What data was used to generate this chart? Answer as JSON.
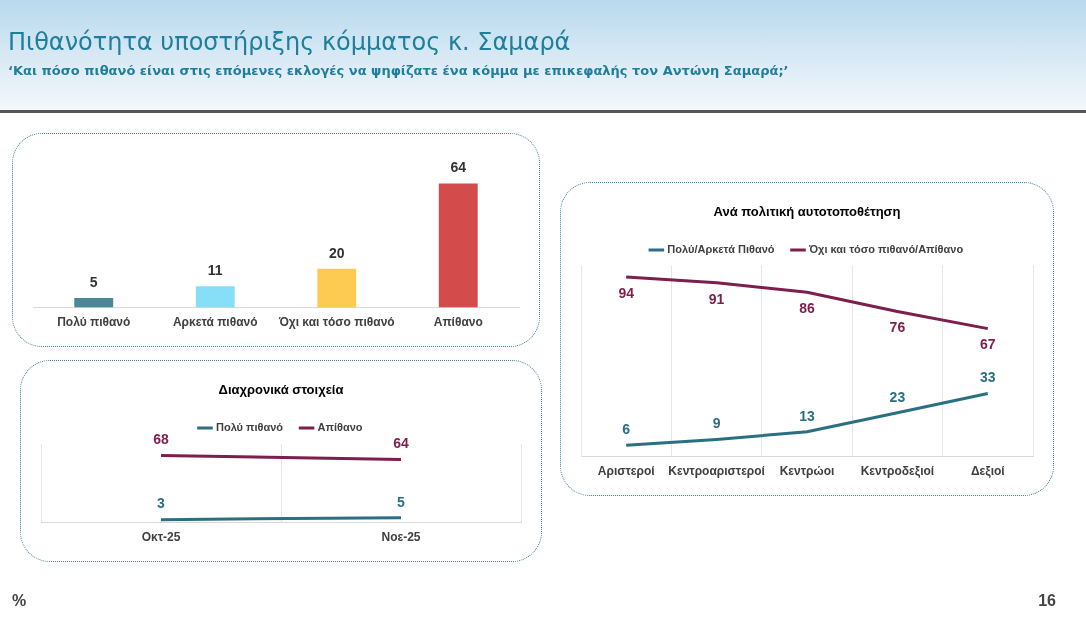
{
  "chart_data": [
    {
      "type": "bar",
      "title": "Πιθανότητα υποστήριξης κόμματος κ. Σαμαρά",
      "subtitle": "‘Και πόσο πιθανό είναι στις επόμενες εκλογές να ψηφίζατε ένα κόμμα με επικεφαλής τον Αντώνη Σαμαρά;’",
      "categories": [
        "Πολύ πιθανό",
        "Αρκετά πιθανό",
        "Όχι και τόσο πιθανό",
        "Απίθανο"
      ],
      "values": [
        5,
        11,
        20,
        64
      ],
      "colors": [
        "#4a8797",
        "#86def7",
        "#fdcb52",
        "#d44b4b"
      ],
      "data_labels": true,
      "grid": false,
      "legend": false,
      "annotations": [
        "%",
        "16"
      ]
    },
    {
      "type": "line",
      "title": "Διαχρονικά στοιχεία",
      "categories": [
        "Οκτ-25",
        "Νοε-25"
      ],
      "series": [
        {
          "name": "Πολύ πιθανό",
          "color": "#2b6f82",
          "values": [
            3,
            5
          ]
        },
        {
          "name": "Απίθανο",
          "color": "#7d1e4c",
          "values": [
            68,
            64
          ]
        }
      ],
      "data_labels": true,
      "grid": "x",
      "legend": "top",
      "marker": "none"
    },
    {
      "type": "line",
      "title": "Ανά πολιτική αυτοτοποθέτηση",
      "categories": [
        "Αριστεροί",
        "Κεντροαριστεροί",
        "Κεντρώοι",
        "Κεντροδεξιοί",
        "Δεξιοί"
      ],
      "series": [
        {
          "name": "Πολύ/Αρκετά Πιθανό",
          "color": "#2b6f82",
          "values": [
            6,
            9,
            13,
            23,
            33
          ]
        },
        {
          "name": "Όχι και τόσο πιθανό/Απίθανο",
          "color": "#7d1e4c",
          "values": [
            94,
            91,
            86,
            76,
            67
          ]
        }
      ],
      "data_labels": true,
      "grid": "x",
      "legend": "top",
      "marker": "none"
    }
  ]
}
